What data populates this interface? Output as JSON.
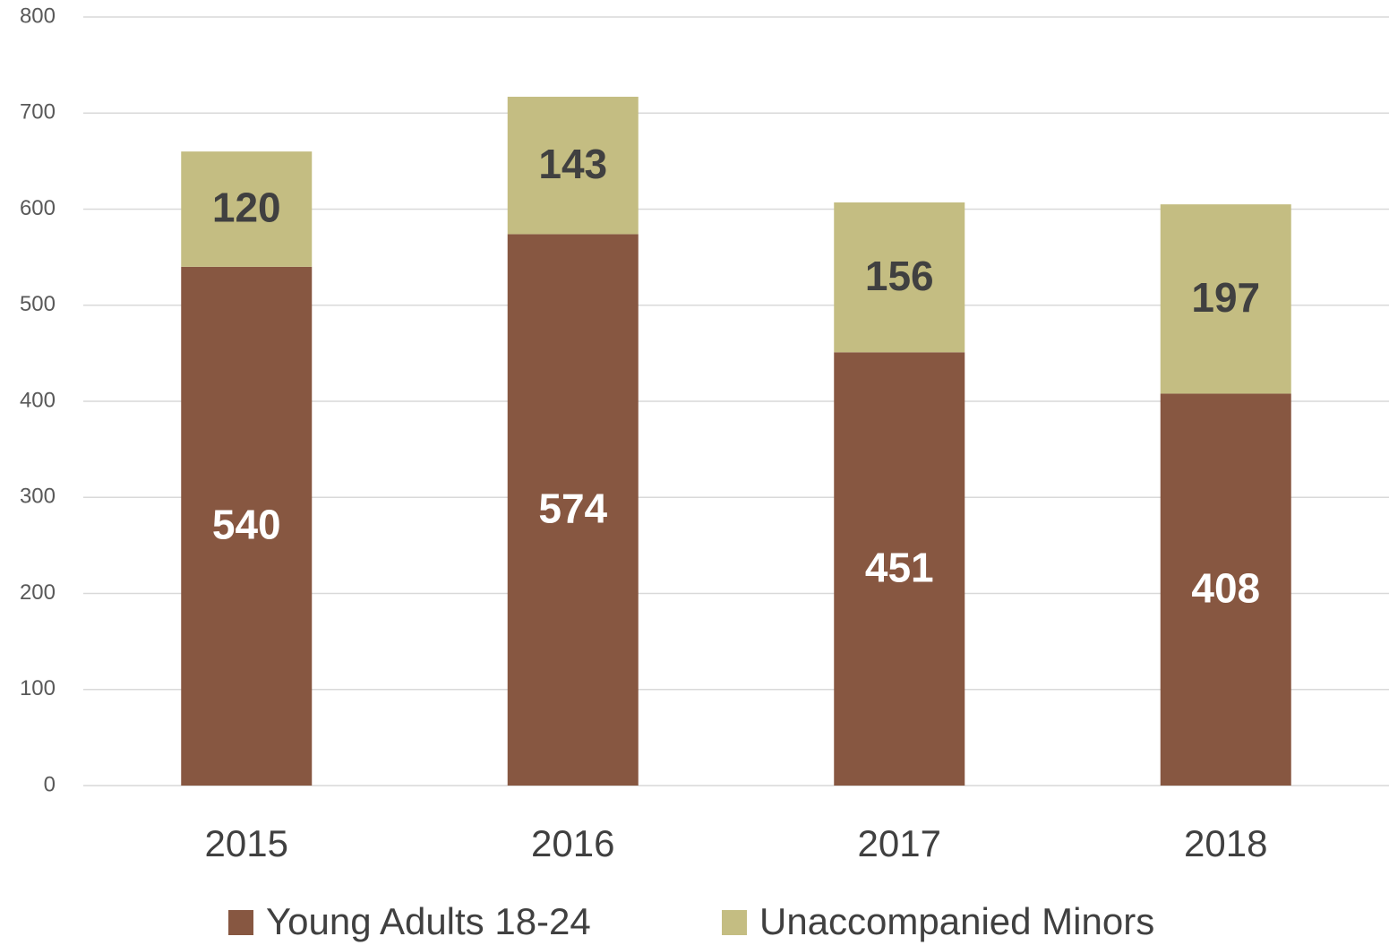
{
  "chart_data": {
    "type": "bar",
    "stacked": true,
    "categories": [
      "2015",
      "2016",
      "2017",
      "2018"
    ],
    "series": [
      {
        "name": "Young Adults 18-24",
        "color": "#875741",
        "values": [
          540,
          574,
          451,
          408
        ]
      },
      {
        "name": "Unaccompanied Minors",
        "color": "#c4bd82",
        "values": [
          120,
          143,
          156,
          197
        ]
      }
    ],
    "ylim": [
      0,
      800
    ],
    "yticks": [
      0,
      100,
      200,
      300,
      400,
      500,
      600,
      700,
      800
    ],
    "grid": true,
    "legend": "bottom"
  }
}
